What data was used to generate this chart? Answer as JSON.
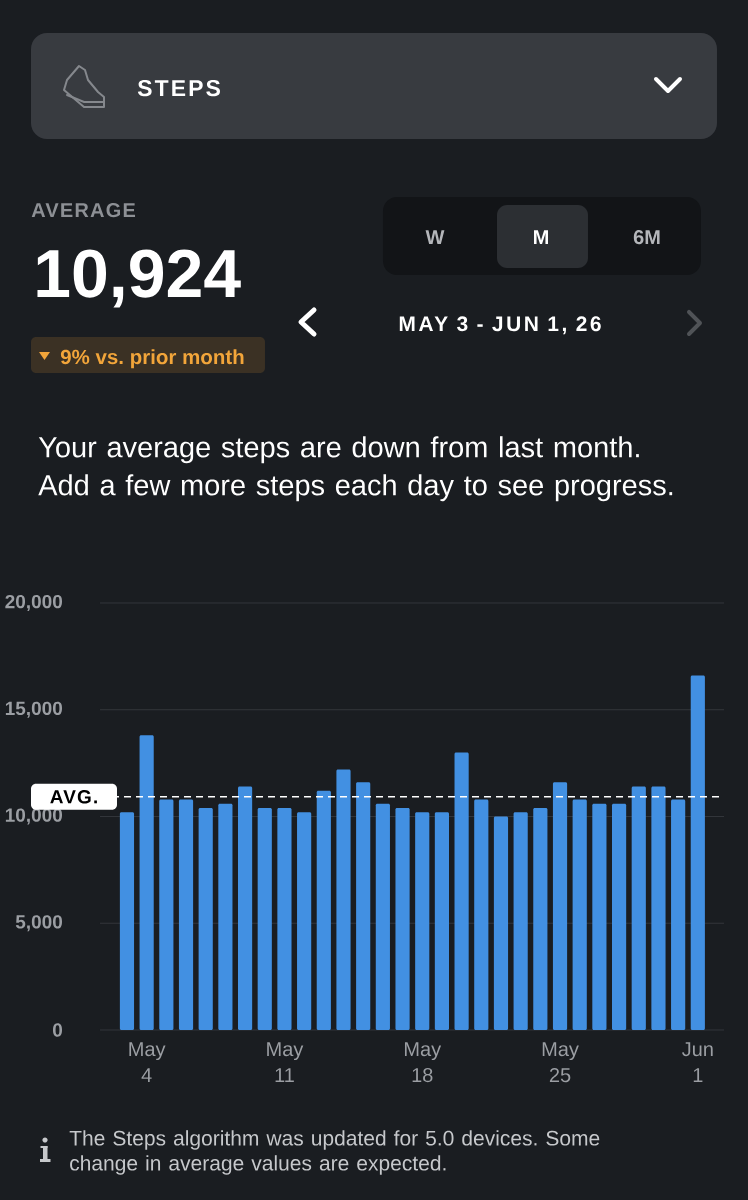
{
  "chart_data": {
    "type": "bar",
    "title": "STEPS",
    "subtitle": "MAY 3 - JUN 1, 26",
    "annotations": [
      "AVERAGE",
      "10,924",
      "9% vs. prior month",
      "W",
      "M",
      "6M",
      "Your average steps are down from last month. Add a few more steps each day to see progress.",
      "The Steps algorithm was updated for 5.0 devices. Some change in average values are expected."
    ],
    "categories": [
      null,
      "May 4",
      null,
      null,
      null,
      null,
      null,
      null,
      "May 11",
      null,
      null,
      null,
      null,
      null,
      null,
      "May 18",
      null,
      null,
      null,
      null,
      null,
      null,
      "May 25",
      null,
      null,
      null,
      null,
      null,
      null,
      "Jun 1"
    ],
    "values": [
      10200,
      13800,
      10800,
      10800,
      10400,
      10600,
      11400,
      10400,
      10400,
      10200,
      11200,
      12200,
      11600,
      10600,
      10400,
      10200,
      10200,
      13000,
      10800,
      10000,
      10200,
      10400,
      11600,
      10800,
      10600,
      10600,
      11400,
      11400,
      10800,
      16600
    ],
    "color": "#4290e2",
    "ylim": [
      0,
      20000
    ],
    "yticks": [
      0,
      {
        "value": 5000,
        "label": "5,000"
      },
      {
        "value": 10000,
        "label": "10,000"
      },
      {
        "value": 15000,
        "label": "15,000"
      },
      {
        "value": 20000,
        "label": "20,000"
      }
    ],
    "grid": "y",
    "ref_lines": [
      {
        "axis": "y",
        "value": 10924,
        "label": "AVG.",
        "color": "#ffffff",
        "line_style": "dashed"
      }
    ]
  }
}
